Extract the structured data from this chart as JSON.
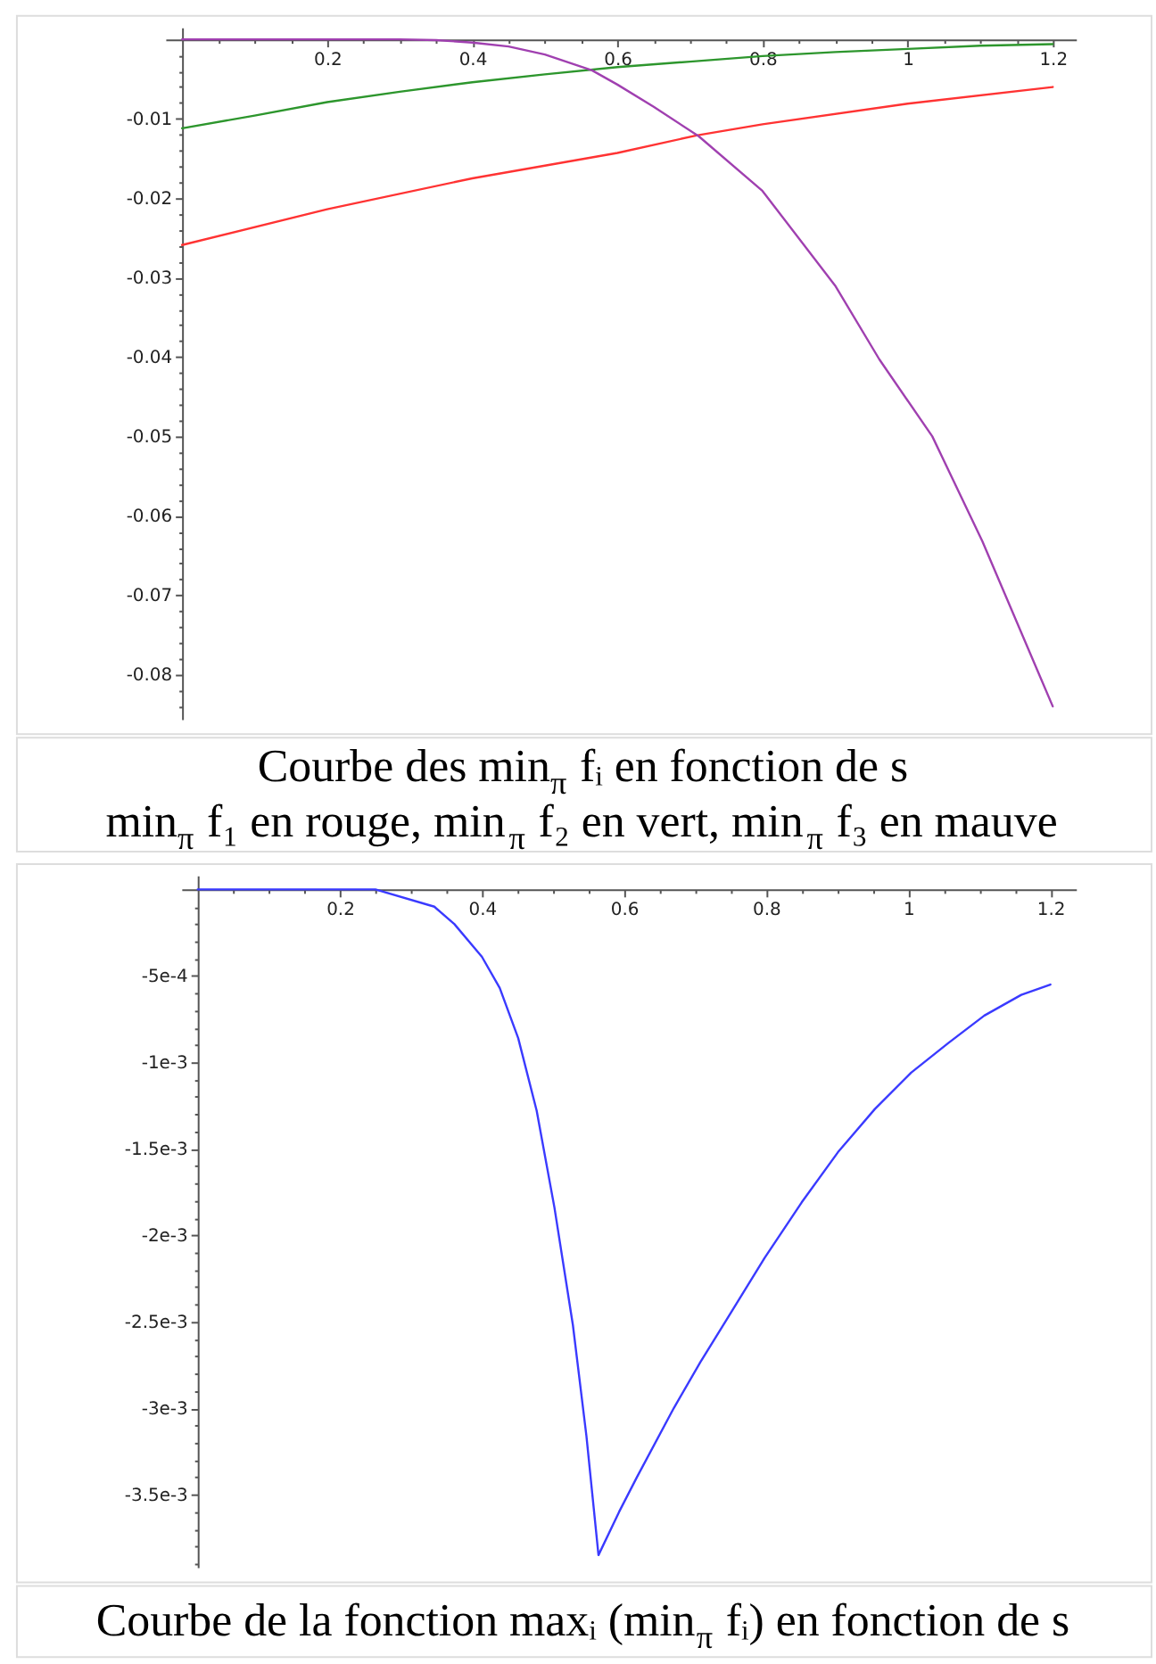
{
  "chart_data": [
    {
      "type": "line",
      "title": "Courbe des min$_{π}$ fᵢ en fonction de s",
      "subtitle": "min$_{π}$ f₁ en rouge, min$_{π}$ f₂ en vert, min$_{π}$ f₃ en mauve",
      "xlim": [
        -0.023,
        1.232
      ],
      "ylim": [
        -0.0856,
        0.0015
      ],
      "xticks": [
        {
          "value": 0.05,
          "label": null
        },
        {
          "value": 0.1,
          "label": null
        },
        {
          "value": 0.15,
          "label": null
        },
        0.2,
        {
          "value": 0.25,
          "label": null
        },
        {
          "value": 0.3,
          "label": null
        },
        {
          "value": 0.35,
          "label": null
        },
        0.4,
        {
          "value": 0.45,
          "label": null
        },
        {
          "value": 0.5,
          "label": null
        },
        {
          "value": 0.55,
          "label": null
        },
        0.6,
        {
          "value": 0.65,
          "label": null
        },
        {
          "value": 0.7,
          "label": null
        },
        {
          "value": 0.75,
          "label": null
        },
        0.8,
        {
          "value": 0.85,
          "label": null
        },
        {
          "value": 0.9,
          "label": null
        },
        {
          "value": 0.95,
          "label": null
        },
        1,
        {
          "value": 1.05,
          "label": null
        },
        {
          "value": 1.1,
          "label": null
        },
        {
          "value": 1.15,
          "label": null
        },
        1.2
      ],
      "yticks": [
        {
          "value": -0.002,
          "label": null
        },
        {
          "value": -0.004,
          "label": null
        },
        {
          "value": -0.006,
          "label": null
        },
        {
          "value": -0.008,
          "label": null
        },
        -0.01,
        {
          "value": -0.012,
          "label": null
        },
        {
          "value": -0.014,
          "label": null
        },
        {
          "value": -0.016,
          "label": null
        },
        {
          "value": -0.018,
          "label": null
        },
        -0.02,
        {
          "value": -0.022,
          "label": null
        },
        {
          "value": -0.024,
          "label": null
        },
        {
          "value": -0.026,
          "label": null
        },
        {
          "value": -0.028,
          "label": null
        },
        -0.03,
        {
          "value": -0.032,
          "label": null
        },
        {
          "value": -0.034,
          "label": null
        },
        {
          "value": -0.036,
          "label": null
        },
        {
          "value": -0.038,
          "label": null
        },
        -0.04,
        {
          "value": -0.042,
          "label": null
        },
        {
          "value": -0.044,
          "label": null
        },
        {
          "value": -0.046,
          "label": null
        },
        {
          "value": -0.048,
          "label": null
        },
        -0.05,
        {
          "value": -0.052,
          "label": null
        },
        {
          "value": -0.054,
          "label": null
        },
        {
          "value": -0.056,
          "label": null
        },
        {
          "value": -0.058,
          "label": null
        },
        -0.06,
        {
          "value": -0.062,
          "label": null
        },
        {
          "value": -0.064,
          "label": null
        },
        {
          "value": -0.066,
          "label": null
        },
        {
          "value": -0.068,
          "label": null
        },
        -0.07,
        {
          "value": -0.072,
          "label": null
        },
        {
          "value": -0.074,
          "label": null
        },
        {
          "value": -0.076,
          "label": null
        },
        {
          "value": -0.078,
          "label": null
        },
        -0.08,
        {
          "value": -0.082,
          "label": null
        },
        {
          "value": -0.084,
          "label": null
        }
      ],
      "series": [
        {
          "color": "#ff3333",
          "x": [
            0,
            0.2,
            0.4,
            0.6,
            0.709,
            0.8,
            1,
            1.2
          ],
          "values": [
            -0.0259,
            -0.0214,
            -0.0175,
            -0.0143,
            -0.0121,
            -0.0107,
            -0.0081,
            -0.006
          ]
        },
        {
          "color": "#2d962d",
          "x": [
            0,
            0.1,
            0.2,
            0.3,
            0.4,
            0.5,
            0.6,
            0.7,
            0.8,
            0.9,
            1,
            1.1,
            1.2
          ],
          "values": [
            -0.0112,
            -0.0096,
            -0.0079,
            -0.0066,
            -0.0054,
            -0.0044,
            -0.0035,
            -0.0028,
            -0.0021,
            -0.0016,
            -0.0012,
            -0.0008,
            -0.0006
          ]
        },
        {
          "color": "#a040b0",
          "x": [
            0,
            0.3,
            0.35,
            0.4,
            0.45,
            0.5,
            0.565,
            0.6,
            0.65,
            0.712,
            0.8,
            0.9,
            0.961,
            1.034,
            1.103,
            1.2
          ],
          "values": [
            0,
            0,
            -0.0001,
            -0.0004,
            -0.0009,
            -0.0019,
            -0.0039,
            -0.0057,
            -0.0085,
            -0.0122,
            -0.0191,
            -0.031,
            -0.0403,
            -0.05,
            -0.0632,
            -0.084
          ]
        }
      ]
    },
    {
      "type": "line",
      "title": "Courbe de la fonction maxᵢ (min$_{π}$ fᵢ) en fonction de s",
      "xlim": [
        -0.023,
        1.236
      ],
      "ylim": [
        -0.00392,
        8e-05
      ],
      "xticks": [
        {
          "value": 0.05,
          "label": null
        },
        {
          "value": 0.1,
          "label": null
        },
        {
          "value": 0.15,
          "label": null
        },
        0.2,
        {
          "value": 0.25,
          "label": null
        },
        {
          "value": 0.3,
          "label": null
        },
        {
          "value": 0.35,
          "label": null
        },
        0.4,
        {
          "value": 0.45,
          "label": null
        },
        {
          "value": 0.5,
          "label": null
        },
        {
          "value": 0.55,
          "label": null
        },
        0.6,
        {
          "value": 0.65,
          "label": null
        },
        {
          "value": 0.7,
          "label": null
        },
        {
          "value": 0.75,
          "label": null
        },
        0.8,
        {
          "value": 0.85,
          "label": null
        },
        {
          "value": 0.9,
          "label": null
        },
        {
          "value": 0.95,
          "label": null
        },
        1,
        {
          "value": 1.05,
          "label": null
        },
        {
          "value": 1.1,
          "label": null
        },
        {
          "value": 1.15,
          "label": null
        },
        1.2
      ],
      "yticks": [
        {
          "value": -0.0001,
          "label": null
        },
        {
          "value": -0.0002,
          "label": null
        },
        {
          "value": -0.0003,
          "label": null
        },
        {
          "value": -0.0004,
          "label": null
        },
        {
          "value": -0.0005,
          "label": "-5e-4"
        },
        {
          "value": -0.0006,
          "label": null
        },
        {
          "value": -0.0007,
          "label": null
        },
        {
          "value": -0.0008,
          "label": null
        },
        {
          "value": -0.0009,
          "label": null
        },
        {
          "value": -0.001,
          "label": "-1e-3"
        },
        {
          "value": -0.0011,
          "label": null
        },
        {
          "value": -0.0012,
          "label": null
        },
        {
          "value": -0.0013,
          "label": null
        },
        {
          "value": -0.0014,
          "label": null
        },
        {
          "value": -0.0015,
          "label": "-1.5e-3"
        },
        {
          "value": -0.0016,
          "label": null
        },
        {
          "value": -0.0017,
          "label": null
        },
        {
          "value": -0.0018,
          "label": null
        },
        {
          "value": -0.0019,
          "label": null
        },
        {
          "value": -0.002,
          "label": "-2e-3"
        },
        {
          "value": -0.0021,
          "label": null
        },
        {
          "value": -0.0022,
          "label": null
        },
        {
          "value": -0.0023,
          "label": null
        },
        {
          "value": -0.0024,
          "label": null
        },
        {
          "value": -0.0025,
          "label": "-2.5e-3"
        },
        {
          "value": -0.0026,
          "label": null
        },
        {
          "value": -0.0027,
          "label": null
        },
        {
          "value": -0.0028,
          "label": null
        },
        {
          "value": -0.0029,
          "label": null
        },
        {
          "value": -0.003,
          "label": "-3e-3"
        },
        {
          "value": -0.0031,
          "label": null
        },
        {
          "value": -0.0032,
          "label": null
        },
        {
          "value": -0.0033,
          "label": null
        },
        {
          "value": -0.0034,
          "label": null
        },
        {
          "value": -0.0035,
          "label": "-3.5e-3"
        },
        {
          "value": -0.0036,
          "label": null
        },
        {
          "value": -0.0037,
          "label": null
        },
        {
          "value": -0.0038,
          "label": null
        },
        {
          "value": -0.0039,
          "label": null
        }
      ],
      "series": [
        {
          "color": "#3a3aff",
          "x": [
            0,
            0.25,
            0.333,
            0.361,
            0.4,
            0.425,
            0.451,
            0.477,
            0.502,
            0.528,
            0.547,
            0.564,
            0.593,
            0.618,
            0.67,
            0.708,
            0.747,
            0.798,
            0.85,
            0.901,
            0.953,
            1.004,
            1.056,
            1.107,
            1.159,
            1.2
          ],
          "values": [
            0,
            0,
            -0.0001,
            -0.0002,
            -0.00039,
            -0.00057,
            -0.00086,
            -0.00128,
            -0.00184,
            -0.00252,
            -0.00316,
            -0.00385,
            -0.0036,
            -0.0034,
            -0.003,
            -0.00273,
            -0.00247,
            -0.00213,
            -0.00181,
            -0.00152,
            -0.00127,
            -0.00106,
            -0.00089,
            -0.00073,
            -0.00061,
            -0.00055
          ]
        }
      ]
    }
  ]
}
